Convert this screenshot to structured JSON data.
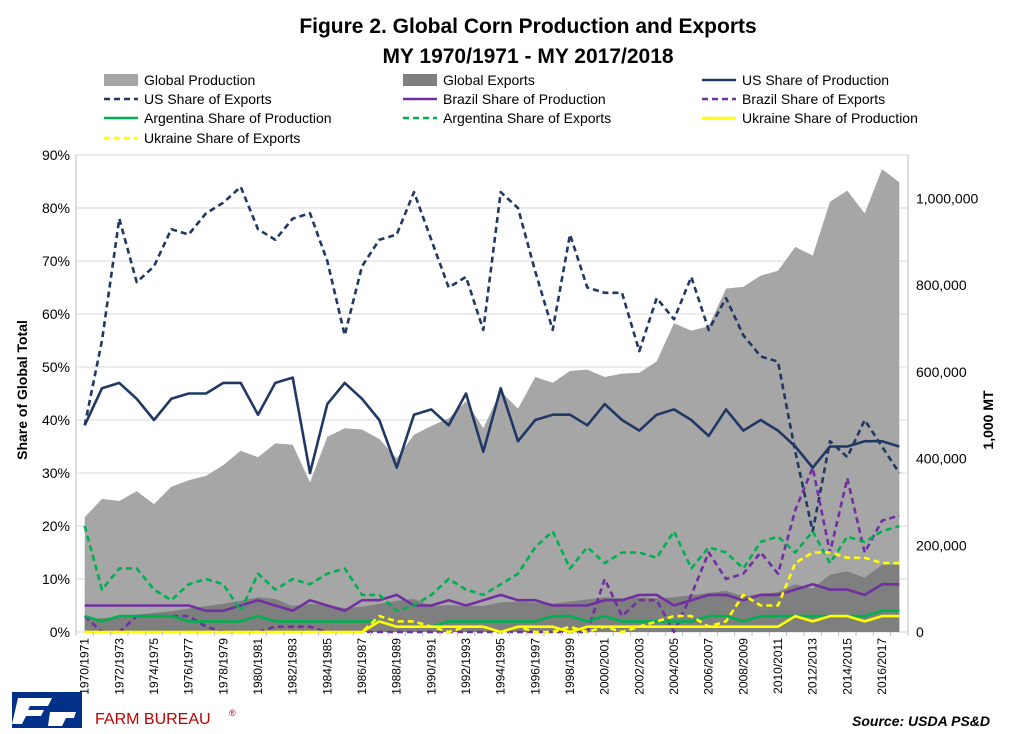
{
  "chart_data": {
    "type": "area",
    "title": "Figure 2. Global Corn Production and Exports",
    "subtitle": "MY 1970/1971  - MY 2017/2018",
    "ylabel": "Share of Global Total",
    "y2label": "1,000 MT",
    "ylim": [
      0,
      0.9
    ],
    "y2lim": [
      0,
      1100000
    ],
    "yticks": [
      "0%",
      "10%",
      "20%",
      "30%",
      "40%",
      "50%",
      "60%",
      "70%",
      "80%",
      "90%"
    ],
    "y2ticks": [
      "0",
      "200,000",
      "400,000",
      "600,000",
      "800,000",
      "1,000,000"
    ],
    "grid": true,
    "legend_position": "top",
    "x": [
      "1970/1971",
      "1971/1972",
      "1972/1973",
      "1973/1974",
      "1974/1975",
      "1975/1976",
      "1976/1977",
      "1977/1978",
      "1978/1979",
      "1979/1980",
      "1980/1981",
      "1981/1982",
      "1982/1983",
      "1983/1984",
      "1984/1985",
      "1985/1986",
      "1986/1987",
      "1987/1988",
      "1988/1989",
      "1989/1990",
      "1990/1991",
      "1991/1992",
      "1992/1993",
      "1993/1994",
      "1994/1995",
      "1995/1996",
      "1996/1997",
      "1997/1998",
      "1998/1999",
      "1999/2000",
      "2000/2001",
      "2001/2002",
      "2002/2003",
      "2003/2004",
      "2004/2005",
      "2005/2006",
      "2006/2007",
      "2007/2008",
      "2008/2009",
      "2009/2010",
      "2010/2011",
      "2011/2012",
      "2012/2013",
      "2013/2014",
      "2014/2015",
      "2015/2016",
      "2016/2017",
      "2017/2018"
    ],
    "xtick_labels_shown": [
      "1970/1971",
      "1972/1973",
      "1974/1975",
      "1976/1977",
      "1978/1979",
      "1980/1981",
      "1982/1983",
      "1984/1985",
      "1986/1987",
      "1988/1989",
      "1990/1991",
      "1992/1993",
      "1994/1995",
      "1996/1997",
      "1998/1999",
      "2000/2001",
      "2002/2003",
      "2004/2005",
      "2006/2007",
      "2008/2009",
      "2010/2011",
      "2012/2013",
      "2014/2015",
      "2016/2017"
    ],
    "series": [
      {
        "name": "Global Production",
        "kind": "area",
        "axis": "right",
        "color": "#a6a6a6",
        "values": [
          265000,
          307000,
          302000,
          325000,
          295000,
          335000,
          350000,
          360000,
          385000,
          418000,
          403000,
          435000,
          432000,
          345000,
          450000,
          470000,
          467000,
          445000,
          400000,
          455000,
          475000,
          493000,
          532000,
          470000,
          555000,
          515000,
          588000,
          575000,
          602000,
          605000,
          588000,
          596000,
          598000,
          624000,
          712000,
          695000,
          705000,
          792000,
          796000,
          822000,
          833000,
          888000,
          868000,
          992000,
          1018000,
          965000,
          1067000,
          1037000
        ]
      },
      {
        "name": "Global Exports",
        "kind": "area",
        "axis": "right",
        "color": "#7f7f7f",
        "values": [
          30000,
          32000,
          35000,
          40000,
          44000,
          48000,
          54000,
          60000,
          65000,
          72000,
          80000,
          76000,
          60000,
          65000,
          62000,
          55000,
          58000,
          65000,
          72000,
          76000,
          60000,
          62000,
          60000,
          60000,
          68000,
          70000,
          68000,
          65000,
          70000,
          75000,
          80000,
          78000,
          80000,
          78000,
          80000,
          85000,
          90000,
          95000,
          82000,
          88000,
          92000,
          110000,
          100000,
          132000,
          140000,
          125000,
          155000,
          155000
        ]
      },
      {
        "name": "US Share of Production",
        "kind": "line",
        "axis": "left",
        "color": "#1f3864",
        "dash": "",
        "values": [
          0.39,
          0.46,
          0.47,
          0.44,
          0.4,
          0.44,
          0.45,
          0.45,
          0.47,
          0.47,
          0.41,
          0.47,
          0.48,
          0.3,
          0.43,
          0.47,
          0.44,
          0.4,
          0.31,
          0.41,
          0.42,
          0.39,
          0.45,
          0.34,
          0.46,
          0.36,
          0.4,
          0.41,
          0.41,
          0.39,
          0.43,
          0.4,
          0.38,
          0.41,
          0.42,
          0.4,
          0.37,
          0.42,
          0.38,
          0.4,
          0.38,
          0.35,
          0.31,
          0.35,
          0.35,
          0.36,
          0.36,
          0.35
        ]
      },
      {
        "name": "US Share of Exports",
        "kind": "line",
        "axis": "left",
        "color": "#1f3864",
        "dash": "6,4",
        "values": [
          0.39,
          0.55,
          0.78,
          0.66,
          0.69,
          0.76,
          0.75,
          0.79,
          0.81,
          0.84,
          0.76,
          0.74,
          0.78,
          0.79,
          0.7,
          0.56,
          0.69,
          0.74,
          0.75,
          0.83,
          0.74,
          0.65,
          0.67,
          0.57,
          0.83,
          0.8,
          0.68,
          0.57,
          0.75,
          0.65,
          0.64,
          0.64,
          0.53,
          0.63,
          0.59,
          0.67,
          0.57,
          0.63,
          0.56,
          0.52,
          0.51,
          0.34,
          0.19,
          0.36,
          0.33,
          0.4,
          0.35,
          0.3
        ]
      },
      {
        "name": "Brazil Share of Production",
        "kind": "line",
        "axis": "left",
        "color": "#7030a0",
        "dash": "",
        "values": [
          0.05,
          0.05,
          0.05,
          0.05,
          0.05,
          0.05,
          0.05,
          0.04,
          0.04,
          0.05,
          0.06,
          0.05,
          0.04,
          0.06,
          0.05,
          0.04,
          0.06,
          0.06,
          0.07,
          0.05,
          0.05,
          0.06,
          0.05,
          0.06,
          0.07,
          0.06,
          0.06,
          0.05,
          0.05,
          0.05,
          0.06,
          0.06,
          0.07,
          0.07,
          0.05,
          0.06,
          0.07,
          0.07,
          0.06,
          0.07,
          0.07,
          0.08,
          0.09,
          0.08,
          0.08,
          0.07,
          0.09,
          0.09
        ]
      },
      {
        "name": "Brazil Share of Exports",
        "kind": "line",
        "axis": "left",
        "color": "#7030a0",
        "dash": "6,4",
        "values": [
          0.03,
          0.0,
          0.0,
          0.03,
          0.03,
          0.03,
          0.03,
          0.01,
          0.0,
          0.0,
          0.0,
          0.01,
          0.01,
          0.01,
          0.0,
          0.0,
          0.0,
          0.0,
          0.0,
          0.0,
          0.0,
          0.0,
          0.0,
          0.0,
          0.0,
          0.0,
          0.0,
          0.0,
          0.0,
          0.0,
          0.1,
          0.03,
          0.06,
          0.06,
          0.0,
          0.07,
          0.15,
          0.1,
          0.11,
          0.15,
          0.11,
          0.23,
          0.31,
          0.15,
          0.29,
          0.15,
          0.21,
          0.22
        ]
      },
      {
        "name": "Argentina Share of Production",
        "kind": "line",
        "axis": "left",
        "color": "#00b050",
        "dash": "",
        "values": [
          0.03,
          0.02,
          0.03,
          0.03,
          0.03,
          0.03,
          0.02,
          0.02,
          0.02,
          0.02,
          0.03,
          0.02,
          0.02,
          0.02,
          0.02,
          0.02,
          0.02,
          0.02,
          0.01,
          0.01,
          0.01,
          0.02,
          0.02,
          0.02,
          0.02,
          0.02,
          0.02,
          0.03,
          0.03,
          0.02,
          0.03,
          0.02,
          0.02,
          0.02,
          0.02,
          0.02,
          0.03,
          0.03,
          0.02,
          0.03,
          0.03,
          0.03,
          0.03,
          0.03,
          0.03,
          0.03,
          0.04,
          0.04
        ]
      },
      {
        "name": "Argentina Share of Exports",
        "kind": "line",
        "axis": "left",
        "color": "#00b050",
        "dash": "6,4",
        "values": [
          0.2,
          0.08,
          0.12,
          0.12,
          0.08,
          0.06,
          0.09,
          0.1,
          0.09,
          0.04,
          0.11,
          0.08,
          0.1,
          0.09,
          0.11,
          0.12,
          0.07,
          0.07,
          0.04,
          0.05,
          0.07,
          0.1,
          0.08,
          0.07,
          0.09,
          0.11,
          0.16,
          0.19,
          0.12,
          0.16,
          0.13,
          0.15,
          0.15,
          0.14,
          0.19,
          0.12,
          0.16,
          0.15,
          0.12,
          0.17,
          0.18,
          0.15,
          0.19,
          0.13,
          0.18,
          0.17,
          0.19,
          0.2
        ]
      },
      {
        "name": "Ukraine Share of Production",
        "kind": "line",
        "axis": "left",
        "color": "#ffff00",
        "dash": "",
        "values": [
          0,
          0,
          0,
          0,
          0,
          0,
          0,
          0,
          0,
          0,
          0,
          0,
          0,
          0,
          0,
          0,
          0,
          0.02,
          0.01,
          0.01,
          0.01,
          0.01,
          0.01,
          0.01,
          0.0,
          0.01,
          0.01,
          0.01,
          0.0,
          0.01,
          0.01,
          0.01,
          0.01,
          0.01,
          0.01,
          0.01,
          0.01,
          0.01,
          0.01,
          0.01,
          0.01,
          0.03,
          0.02,
          0.03,
          0.03,
          0.02,
          0.03,
          0.03
        ]
      },
      {
        "name": "Ukraine Share of Exports",
        "kind": "line",
        "axis": "left",
        "color": "#ffff00",
        "dash": "6,4",
        "values": [
          0,
          0,
          0,
          0,
          0,
          0,
          0,
          0,
          0,
          0,
          0,
          0,
          0,
          0,
          0,
          0,
          0,
          0.03,
          0.02,
          0.02,
          0.01,
          0.0,
          0.01,
          0.01,
          0.0,
          0.01,
          0.0,
          0.0,
          0.01,
          0.0,
          0.01,
          0.0,
          0.01,
          0.02,
          0.03,
          0.03,
          0.01,
          0.02,
          0.07,
          0.05,
          0.05,
          0.13,
          0.15,
          0.15,
          0.14,
          0.14,
          0.13,
          0.13
        ]
      }
    ],
    "legend_entries": [
      "Global Production",
      "Global Exports",
      "US Share of Production",
      "US Share of Exports",
      "Brazil Share of Production",
      "Brazil Share of Exports",
      "Argentina Share of Production",
      "Argentina Share of Exports",
      "Ukraine Share of Production",
      "Ukraine Share of Exports"
    ]
  },
  "footer": {
    "brand": "FARM BUREAU",
    "brand_mark": "®",
    "source": "Source: USDA PS&D",
    "brand_color": "#c00000"
  }
}
